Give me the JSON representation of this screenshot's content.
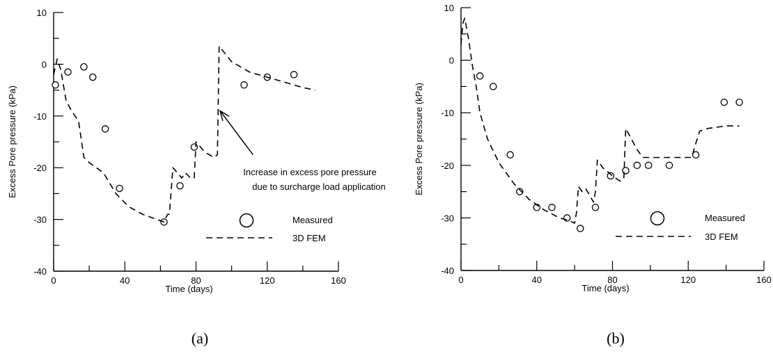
{
  "chart_data": [
    {
      "type": "scatter",
      "panel_label": "(a)",
      "xlabel": "Time (days)",
      "ylabel": "Excess Pore pressure (kPa)",
      "xlim": [
        0,
        160
      ],
      "ylim": [
        -40,
        10
      ],
      "xticks": [
        0,
        40,
        80,
        120,
        160
      ],
      "yticks": [
        -40,
        -30,
        -20,
        -10,
        0,
        10
      ],
      "grid": false,
      "legend": {
        "placement": "bottom-right",
        "entries": [
          {
            "label": "Measured",
            "marker": "circle"
          },
          {
            "label": "3D FEM",
            "marker": "dashed-line"
          }
        ]
      },
      "annotation": {
        "lines": [
          "Increase in excess pore pressure",
          "due to surcharge load application"
        ],
        "arrow_from": [
          112,
          -17.5
        ],
        "arrow_to": [
          93.5,
          -9
        ]
      },
      "series": [
        {
          "name": "Measured",
          "style": "open-circle",
          "x": [
            1,
            8,
            17,
            22,
            29,
            37,
            62,
            71,
            79,
            107,
            120,
            135
          ],
          "y": [
            -4,
            -1.5,
            -0.5,
            -2.5,
            -12.5,
            -24,
            -30.5,
            -23.5,
            -16,
            -4,
            -2.5,
            -2
          ]
        },
        {
          "name": "3D FEM",
          "style": "dashed",
          "x": [
            0,
            2,
            4,
            7,
            10,
            14,
            17,
            20,
            28,
            35,
            42,
            50,
            58,
            62,
            64,
            65,
            67,
            72,
            74,
            77,
            79,
            80,
            85,
            90,
            92,
            93,
            100,
            110,
            120,
            130,
            140,
            147
          ],
          "y": [
            -2,
            1,
            -1,
            -7,
            -9,
            -11,
            -18,
            -19,
            -21,
            -25,
            -27.5,
            -29,
            -30,
            -30.5,
            -29,
            -29,
            -20,
            -22,
            -21,
            -22,
            -22,
            -15,
            -17,
            -18,
            -17.5,
            3.5,
            0.5,
            -1.5,
            -2.5,
            -3.5,
            -4.5,
            -5
          ]
        }
      ]
    },
    {
      "type": "scatter",
      "panel_label": "(b)",
      "xlabel": "Time (days)",
      "ylabel": "Excess Pore pressure (kPa)",
      "xlim": [
        0,
        160
      ],
      "ylim": [
        -40,
        10
      ],
      "xticks": [
        0,
        40,
        80,
        120,
        160
      ],
      "yticks": [
        -40,
        -30,
        -20,
        -10,
        0,
        10
      ],
      "grid": false,
      "legend": {
        "placement": "bottom-right",
        "entries": [
          {
            "label": "Measured",
            "marker": "circle"
          },
          {
            "label": "3D FEM",
            "marker": "dashed-line"
          }
        ]
      },
      "series": [
        {
          "name": "Measured",
          "style": "open-circle",
          "x": [
            10,
            17,
            26,
            31,
            40,
            48,
            56,
            63,
            71,
            79,
            87,
            93,
            99,
            110,
            124,
            139,
            147
          ],
          "y": [
            -3,
            -5,
            -18,
            -25,
            -28,
            -28,
            -30,
            -32,
            -28,
            -22,
            -21,
            -20,
            -20,
            -20,
            -18,
            -8,
            -8
          ]
        },
        {
          "name": "3D FEM",
          "style": "dashed",
          "x": [
            0,
            1,
            2,
            4,
            6,
            8,
            10,
            14,
            20,
            28,
            36,
            44,
            52,
            57,
            60,
            61,
            62,
            64,
            66,
            70,
            71,
            72,
            75,
            80,
            84,
            86,
            87,
            93,
            96,
            100,
            104,
            108,
            112,
            118,
            122,
            123,
            126,
            130,
            140,
            147
          ],
          "y": [
            3,
            7,
            8,
            4,
            -1,
            -5,
            -10,
            -15,
            -19.5,
            -23.5,
            -26.5,
            -28.5,
            -30,
            -30.5,
            -31,
            -29,
            -24,
            -25,
            -24.5,
            -27,
            -25,
            -19,
            -20.5,
            -22,
            -23,
            -22.5,
            -13,
            -17,
            -18.5,
            -18.5,
            -18.5,
            -18.5,
            -18.5,
            -18.5,
            -18.5,
            -17,
            -13.5,
            -13,
            -12.5,
            -12.5
          ]
        }
      ]
    }
  ]
}
